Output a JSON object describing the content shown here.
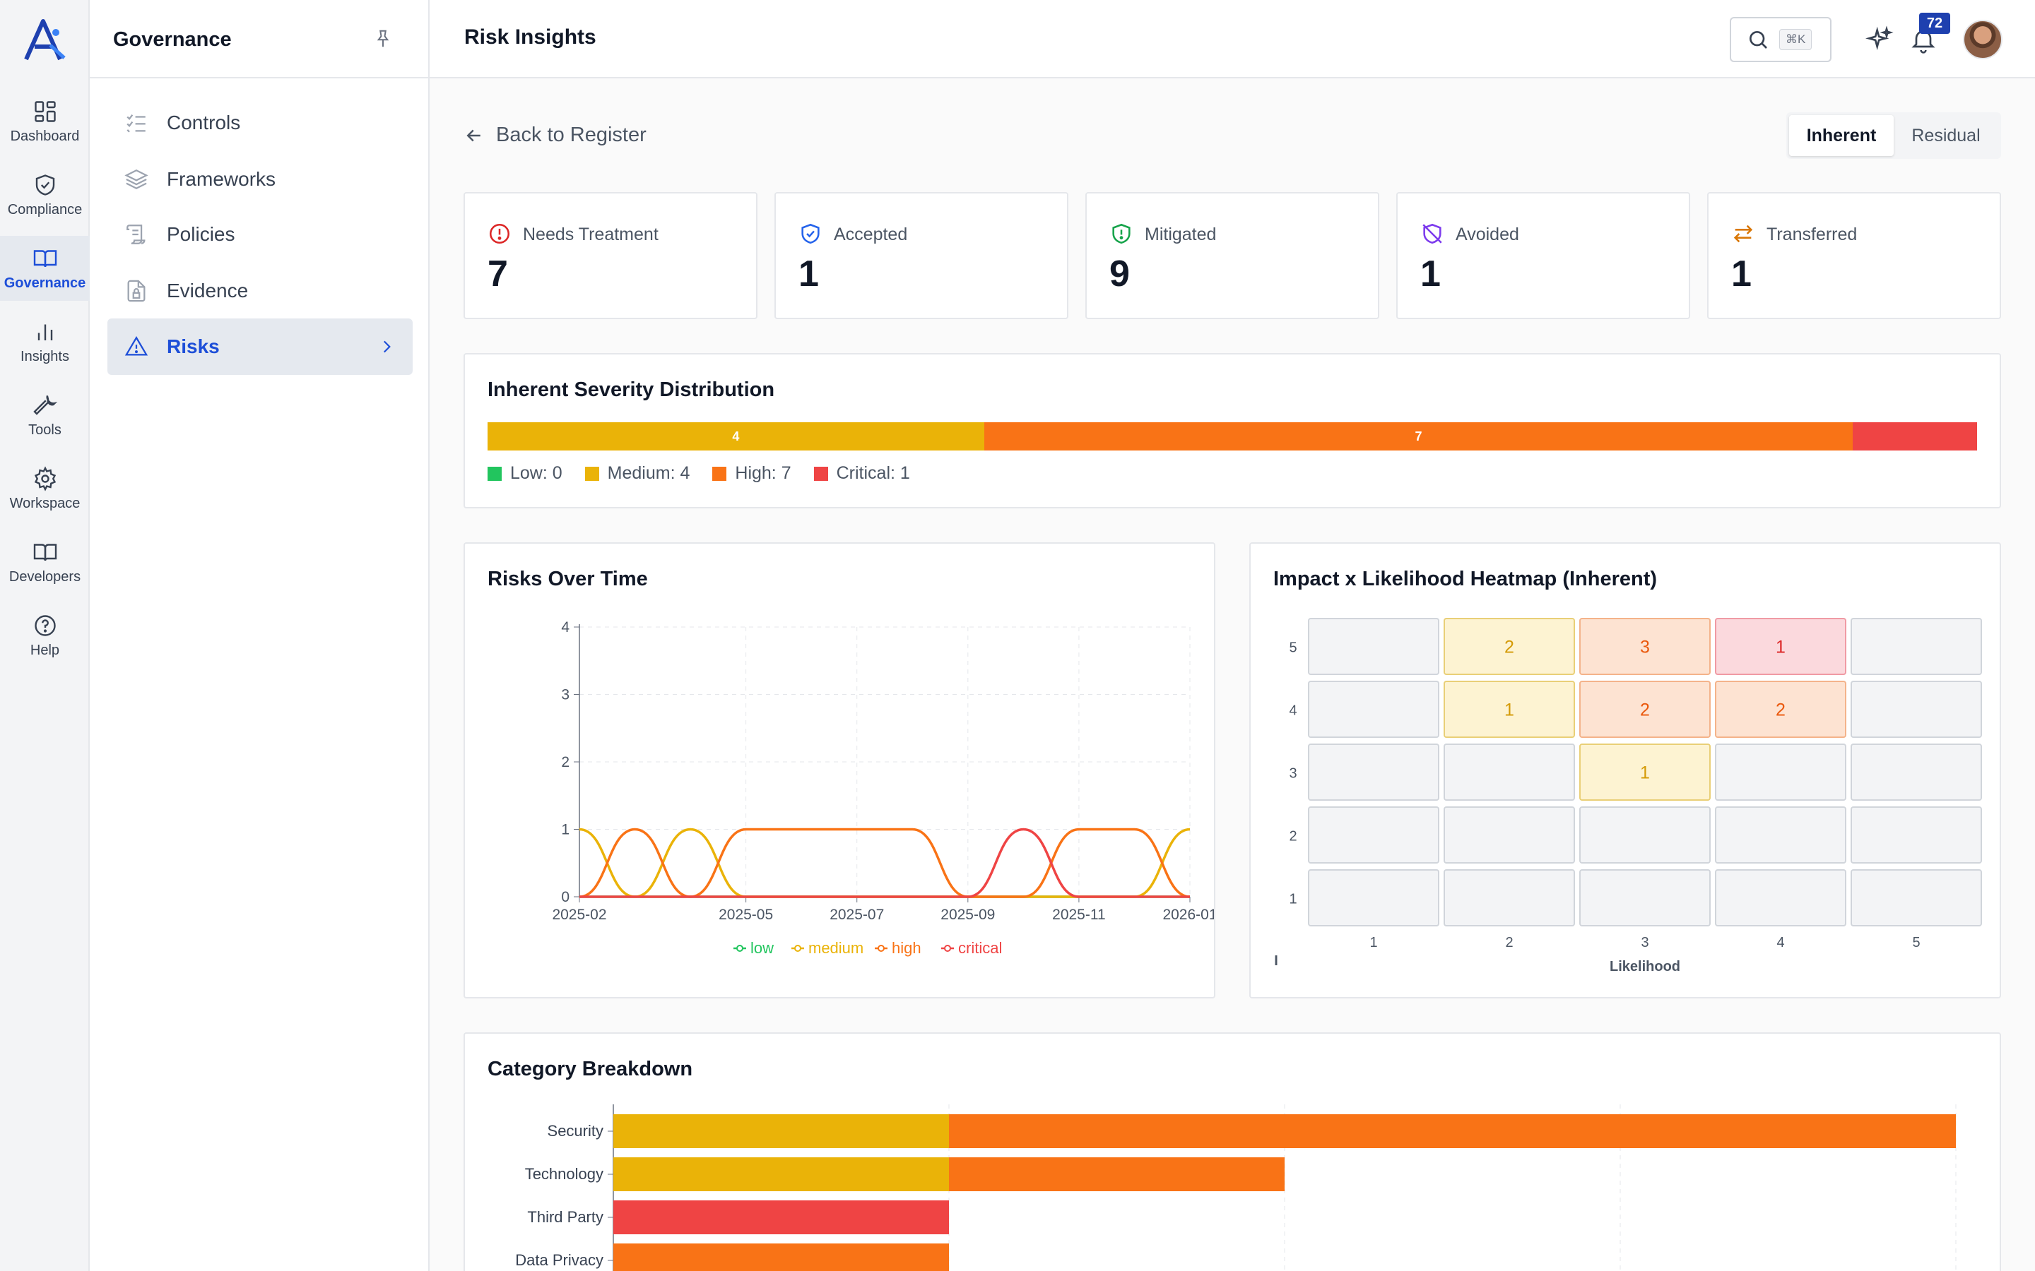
{
  "rail": {
    "items": [
      {
        "label": "Dashboard",
        "icon": "grid-icon"
      },
      {
        "label": "Compliance",
        "icon": "shield-check-icon"
      },
      {
        "label": "Governance",
        "icon": "book-open-icon",
        "active": true
      },
      {
        "label": "Insights",
        "icon": "bar-chart-icon"
      },
      {
        "label": "Tools",
        "icon": "wrench-icon"
      },
      {
        "label": "Workspace",
        "icon": "gear-icon"
      },
      {
        "label": "Developers",
        "icon": "book-icon"
      },
      {
        "label": "Help",
        "icon": "help-circle-icon"
      }
    ]
  },
  "subnav": {
    "title": "Governance",
    "items": [
      {
        "label": "Controls",
        "icon": "checklist-icon"
      },
      {
        "label": "Frameworks",
        "icon": "layers-icon"
      },
      {
        "label": "Policies",
        "icon": "scroll-icon"
      },
      {
        "label": "Evidence",
        "icon": "file-lock-icon"
      },
      {
        "label": "Risks",
        "icon": "warning-triangle-icon",
        "active": true
      }
    ]
  },
  "header": {
    "title": "Risk Insights",
    "search_shortcut": "⌘K",
    "notification_count": "72"
  },
  "main": {
    "back_label": "Back to Register",
    "toggle": [
      "Inherent",
      "Residual"
    ],
    "toggle_selected": "Inherent",
    "stats": [
      {
        "label": "Needs Treatment",
        "value": "7",
        "icon": "alert-circle-icon",
        "color": "#dc2626"
      },
      {
        "label": "Accepted",
        "value": "1",
        "icon": "shield-check-icon",
        "color": "#2563eb"
      },
      {
        "label": "Mitigated",
        "value": "9",
        "icon": "shield-alert-icon",
        "color": "#16a34a"
      },
      {
        "label": "Avoided",
        "value": "1",
        "icon": "shield-off-icon",
        "color": "#7c3aed"
      },
      {
        "label": "Transferred",
        "value": "1",
        "icon": "arrows-swap-icon",
        "color": "#d97706"
      }
    ],
    "severity": {
      "title": "Inherent Severity Distribution",
      "segments": [
        {
          "name": "Low",
          "count": 0,
          "color": "#22c55e",
          "legend": "Low: 0",
          "label": ""
        },
        {
          "name": "Medium",
          "count": 4,
          "color": "#eab308",
          "legend": "Medium: 4",
          "label": "4"
        },
        {
          "name": "High",
          "count": 7,
          "color": "#f97316",
          "legend": "High: 7",
          "label": "7"
        },
        {
          "name": "Critical",
          "count": 1,
          "color": "#ef4444",
          "legend": "Critical: 1",
          "label": ""
        }
      ]
    },
    "risks_over_time": {
      "title": "Risks Over Time"
    },
    "heatmap": {
      "title": "Impact x Likelihood Heatmap (Inherent)",
      "y_axis_label": "I"
    },
    "category": {
      "title": "Category Breakdown"
    }
  },
  "chart_data": [
    {
      "type": "line",
      "title": "Risks Over Time",
      "x": [
        "2025-02",
        "2025-03",
        "2025-04",
        "2025-05",
        "2025-06",
        "2025-07",
        "2025-08",
        "2025-09",
        "2025-10",
        "2025-11",
        "2025-12",
        "2026-01"
      ],
      "x_tick_labels": [
        "2025-02",
        "2025-05",
        "2025-07",
        "2025-09",
        "2025-11",
        "2026-01"
      ],
      "ylim": [
        0,
        4
      ],
      "y_ticks": [
        0,
        1,
        2,
        3,
        4
      ],
      "grid": true,
      "legend": "bottom",
      "series": [
        {
          "name": "low",
          "color": "#22c55e",
          "values": [
            0,
            0,
            0,
            0,
            0,
            0,
            0,
            0,
            0,
            0,
            0,
            0
          ]
        },
        {
          "name": "medium",
          "color": "#eab308",
          "values": [
            1,
            0,
            1,
            0,
            0,
            0,
            0,
            0,
            0,
            0,
            0,
            1
          ]
        },
        {
          "name": "high",
          "color": "#f97316",
          "values": [
            0,
            1,
            0,
            1,
            1,
            1,
            1,
            0,
            0,
            1,
            1,
            0
          ]
        },
        {
          "name": "critical",
          "color": "#ef4444",
          "values": [
            0,
            0,
            0,
            0,
            0,
            0,
            0,
            0,
            1,
            0,
            0,
            0
          ]
        }
      ]
    },
    {
      "type": "heatmap",
      "title": "Impact x Likelihood Heatmap (Inherent)",
      "xlabel": "Likelihood",
      "ylabel": "I",
      "x_categories": [
        1,
        2,
        3,
        4,
        5
      ],
      "y_categories": [
        5,
        4,
        3,
        2,
        1
      ],
      "cells": [
        [
          null,
          2,
          3,
          1,
          null
        ],
        [
          null,
          1,
          2,
          2,
          null
        ],
        [
          null,
          null,
          1,
          null,
          null
        ],
        [
          null,
          null,
          null,
          null,
          null
        ],
        [
          null,
          null,
          null,
          null,
          null
        ]
      ],
      "severity": [
        [
          "none",
          "medium",
          "high",
          "critical",
          "none"
        ],
        [
          "none",
          "medium",
          "high",
          "high",
          "none"
        ],
        [
          "none",
          "none",
          "medium",
          "none",
          "none"
        ],
        [
          "none",
          "none",
          "none",
          "none",
          "none"
        ],
        [
          "none",
          "none",
          "none",
          "none",
          "none"
        ]
      ]
    },
    {
      "type": "bar",
      "title": "Category Breakdown",
      "orientation": "horizontal",
      "stacked": true,
      "categories": [
        "Security",
        "Technology",
        "Third Party",
        "Data Privacy"
      ],
      "series": [
        {
          "name": "medium",
          "color": "#eab308",
          "values": [
            1,
            1,
            0,
            0
          ]
        },
        {
          "name": "high",
          "color": "#f97316",
          "values": [
            3,
            1,
            0,
            1
          ]
        },
        {
          "name": "critical",
          "color": "#ef4444",
          "values": [
            0,
            0,
            1,
            0
          ]
        }
      ],
      "xlim": [
        0,
        4
      ],
      "grid": true
    }
  ]
}
